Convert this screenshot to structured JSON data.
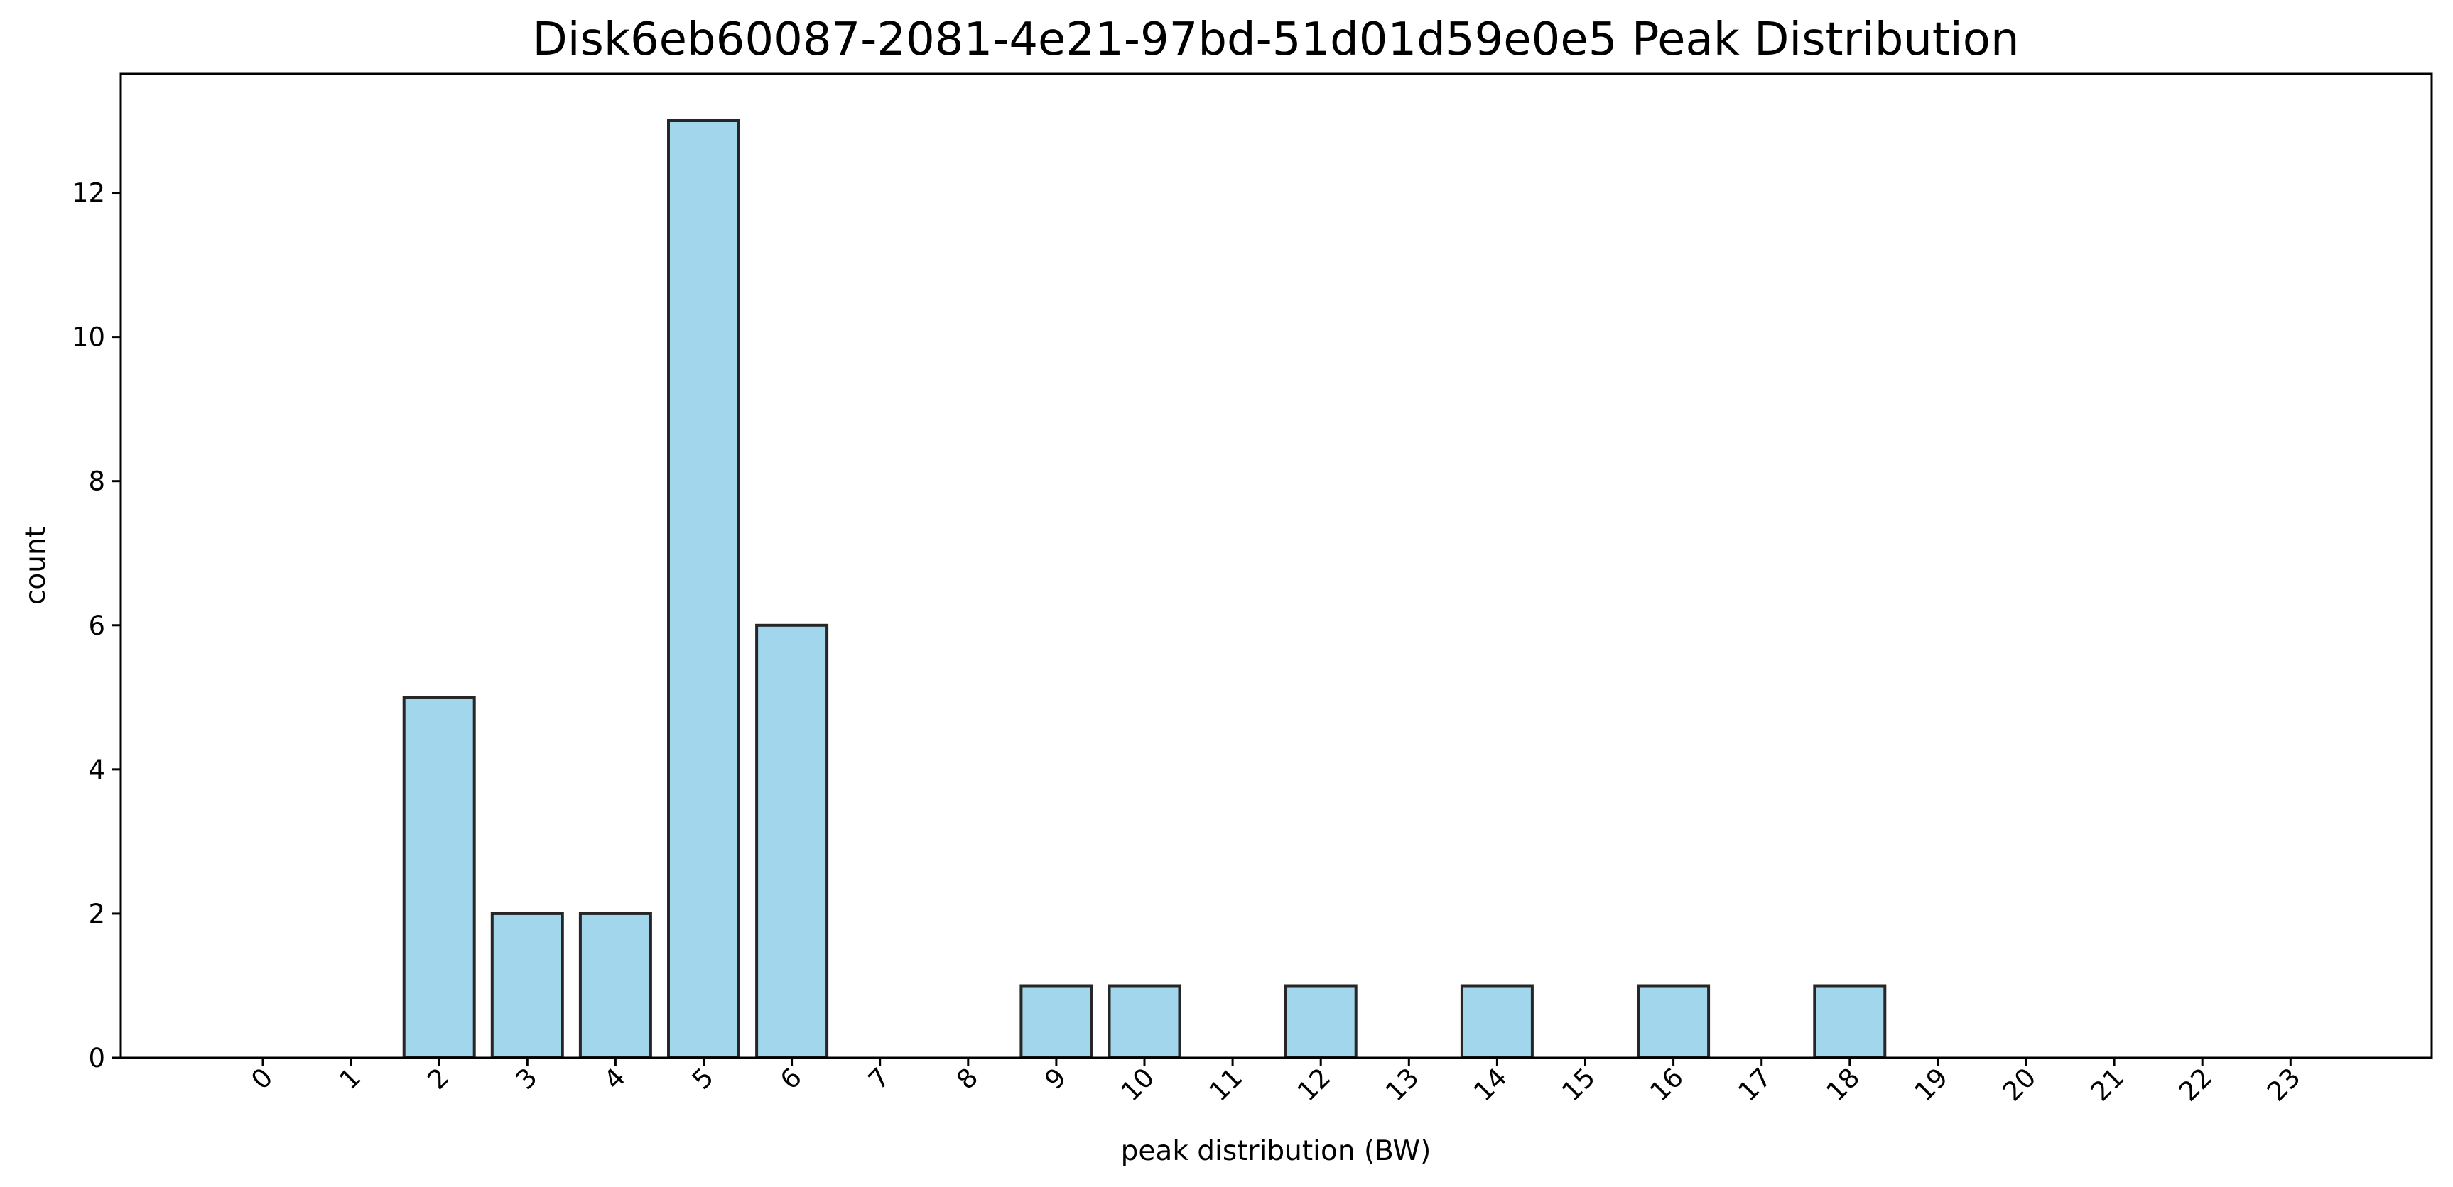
{
  "chart_data": {
    "type": "bar",
    "title": "Disk6eb60087-2081-4e21-97bd-51d01d59e0e5 Peak Distribution",
    "xlabel": "peak distribution (BW)",
    "ylabel": "count",
    "categories": [
      "0",
      "1",
      "2",
      "3",
      "4",
      "5",
      "6",
      "7",
      "8",
      "9",
      "10",
      "11",
      "12",
      "13",
      "14",
      "15",
      "16",
      "17",
      "18",
      "19",
      "20",
      "21",
      "22",
      "23"
    ],
    "values": [
      0,
      0,
      5,
      2,
      2,
      13,
      6,
      0,
      0,
      1,
      1,
      0,
      1,
      0,
      1,
      0,
      1,
      0,
      1,
      0,
      0,
      0,
      0,
      0
    ],
    "ylim": [
      0,
      13.65
    ],
    "yticks": [
      0,
      2,
      4,
      6,
      8,
      10,
      12
    ],
    "grid": false,
    "bar_color": "#a1d6ec",
    "edge_color": "#262626"
  }
}
